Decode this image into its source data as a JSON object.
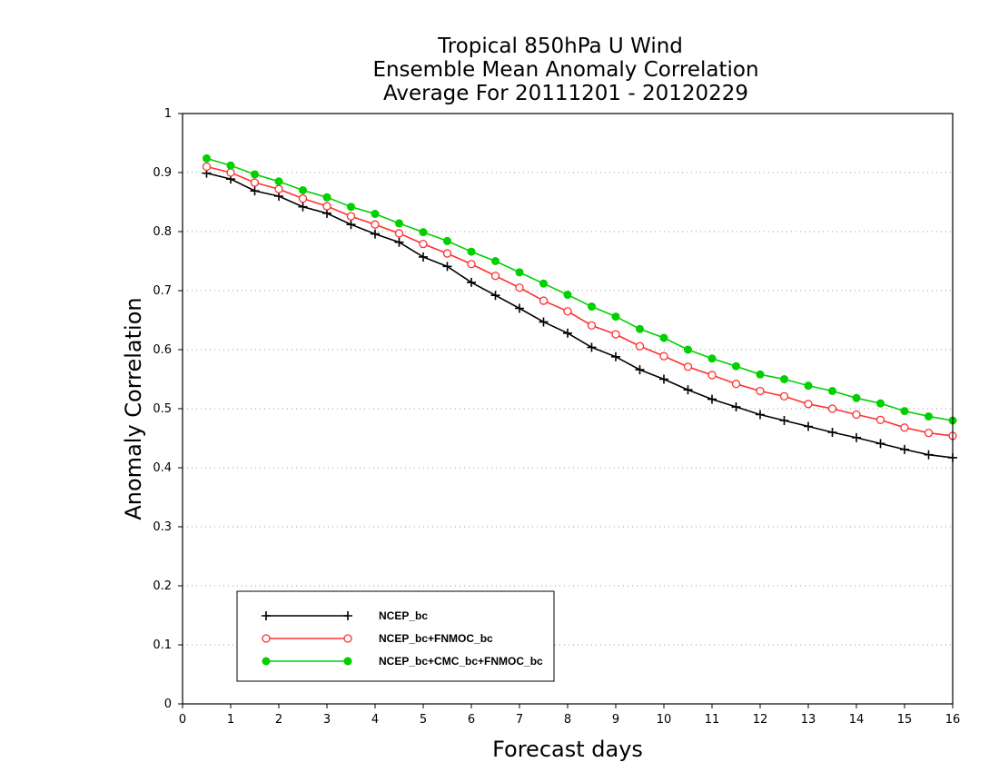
{
  "chart_data": {
    "type": "line",
    "title": "Tropical 850hPa U Wind",
    "subtitle": "Ensemble Mean Anomaly Correlation",
    "period": "Average For 20111201 - 20120229",
    "xlabel": "Forecast days",
    "ylabel": "Anomaly Correlation",
    "xlim": [
      0,
      16
    ],
    "ylim": [
      0,
      1
    ],
    "x_ticks": [
      "0",
      "1",
      "2",
      "3",
      "4",
      "5",
      "6",
      "7",
      "8",
      "9",
      "10",
      "11",
      "12",
      "13",
      "14",
      "15",
      "16"
    ],
    "y_ticks": [
      "0",
      "0.1",
      "0.2",
      "0.3",
      "0.4",
      "0.5",
      "0.6",
      "0.7",
      "0.8",
      "0.9",
      "1"
    ],
    "grid": "horizontal-dotted",
    "legend_position": "bottom-left",
    "x": [
      0.5,
      1,
      1.5,
      2,
      2.5,
      3,
      3.5,
      4,
      4.5,
      5,
      5.5,
      6,
      6.5,
      7,
      7.5,
      8,
      8.5,
      9,
      9.5,
      10,
      10.5,
      11,
      11.5,
      12,
      12.5,
      13,
      13.5,
      14,
      14.5,
      15,
      15.5,
      16
    ],
    "series": [
      {
        "name": "NCEP_bc",
        "color": "#000000",
        "marker": "plus",
        "values": [
          0.899,
          0.889,
          0.869,
          0.86,
          0.842,
          0.831,
          0.812,
          0.796,
          0.782,
          0.757,
          0.741,
          0.714,
          0.692,
          0.67,
          0.647,
          0.628,
          0.604,
          0.588,
          0.566,
          0.55,
          0.532,
          0.516,
          0.503,
          0.49,
          0.48,
          0.47,
          0.46,
          0.451,
          0.441,
          0.431,
          0.422,
          0.417
        ]
      },
      {
        "name": "NCEP_bc+FNMOC_bc",
        "color": "#ff3030",
        "marker": "open-circle",
        "values": [
          0.91,
          0.9,
          0.883,
          0.872,
          0.856,
          0.843,
          0.826,
          0.812,
          0.797,
          0.779,
          0.763,
          0.745,
          0.725,
          0.705,
          0.683,
          0.665,
          0.641,
          0.626,
          0.606,
          0.589,
          0.571,
          0.557,
          0.542,
          0.53,
          0.521,
          0.508,
          0.5,
          0.49,
          0.481,
          0.468,
          0.459,
          0.454
        ]
      },
      {
        "name": "NCEP_bc+CMC_bc+FNMOC_bc",
        "color": "#00d000",
        "marker": "filled-circle",
        "values": [
          0.924,
          0.912,
          0.897,
          0.885,
          0.87,
          0.858,
          0.842,
          0.83,
          0.814,
          0.799,
          0.784,
          0.766,
          0.75,
          0.731,
          0.712,
          0.693,
          0.673,
          0.656,
          0.635,
          0.62,
          0.6,
          0.585,
          0.572,
          0.558,
          0.55,
          0.539,
          0.53,
          0.518,
          0.509,
          0.496,
          0.487,
          0.48
        ]
      }
    ]
  }
}
